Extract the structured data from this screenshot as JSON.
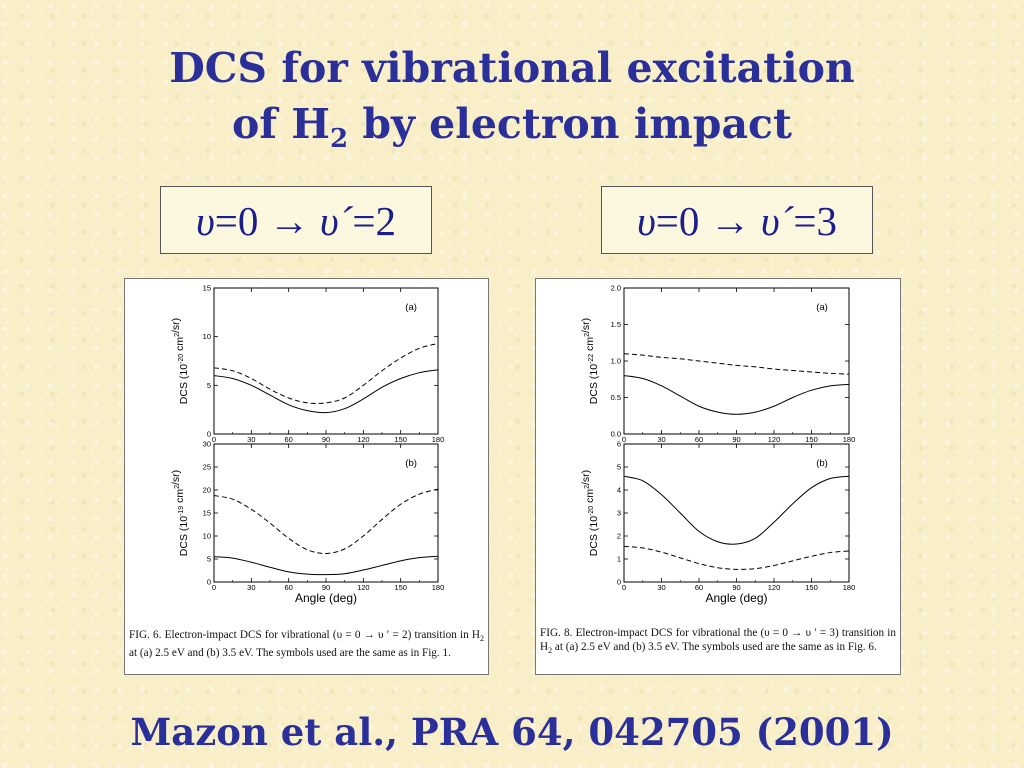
{
  "slide": {
    "title_line1": "DCS for vibrational excitation",
    "title_line2_pre": "of H",
    "title_line2_sub": "2",
    "title_line2_post": " by electron impact",
    "footer": "Mazon et al., PRA 64, 042705 (2001)"
  },
  "boxes": [
    {
      "v_symbol": "υ",
      "eq1": "=0 → ",
      "v_prime": "υ´",
      "eq2": "=2"
    },
    {
      "v_symbol": "υ",
      "eq1": "=0 → ",
      "v_prime": "υ´",
      "eq2": "=3"
    }
  ],
  "captions": [
    {
      "pre": "FIG. 6. Electron-impact DCS for vibrational (υ = 0 → υ ′ = 2) transition in H",
      "sub": "2",
      "post": " at (a) 2.5 eV and (b) 3.5 eV. The symbols used are the same as in Fig. 1."
    },
    {
      "pre": "FIG. 8. Electron-impact DCS for vibrational the (υ = 0 → υ ′ = 3) transition in H",
      "sub": "2",
      "post": " at (a) 2.5 eV and (b) 3.5 eV. The symbols used are the same as in Fig. 6."
    }
  ],
  "chart_data": [
    {
      "type": "line",
      "label": "(a)",
      "ylabel": "DCS (10^-20 cm^2/sr)",
      "xlabel": "",
      "xlim": [
        0,
        180
      ],
      "ylim": [
        0,
        15
      ],
      "xticks": [
        0,
        30,
        60,
        90,
        120,
        150,
        180
      ],
      "yticks": [
        0,
        5,
        10,
        15
      ],
      "series": [
        {
          "style": "solid",
          "x": [
            0,
            15,
            30,
            45,
            60,
            75,
            90,
            105,
            120,
            135,
            150,
            165,
            180
          ],
          "values": [
            6.0,
            5.7,
            5.0,
            4.0,
            3.0,
            2.4,
            2.2,
            2.6,
            3.6,
            4.8,
            5.7,
            6.3,
            6.6
          ]
        },
        {
          "style": "dashed",
          "x": [
            0,
            15,
            30,
            45,
            60,
            75,
            90,
            105,
            120,
            135,
            150,
            165,
            180
          ],
          "values": [
            6.8,
            6.5,
            5.7,
            4.6,
            3.7,
            3.2,
            3.2,
            3.7,
            5.0,
            6.5,
            7.8,
            8.8,
            9.3
          ]
        }
      ]
    },
    {
      "type": "line",
      "label": "(b)",
      "ylabel": "DCS (10^-19 cm^2/sr)",
      "xlabel": "Angle (deg)",
      "xlim": [
        0,
        180
      ],
      "ylim": [
        0,
        30
      ],
      "xticks": [
        0,
        30,
        60,
        90,
        120,
        150,
        180
      ],
      "yticks": [
        0,
        5,
        10,
        15,
        20,
        25,
        30
      ],
      "series": [
        {
          "style": "solid",
          "x": [
            0,
            15,
            30,
            45,
            60,
            75,
            90,
            105,
            120,
            135,
            150,
            165,
            180
          ],
          "values": [
            5.5,
            5.2,
            4.3,
            3.2,
            2.2,
            1.7,
            1.6,
            1.8,
            2.6,
            3.6,
            4.6,
            5.3,
            5.6
          ]
        },
        {
          "style": "dashed",
          "x": [
            0,
            15,
            30,
            45,
            60,
            75,
            90,
            105,
            120,
            135,
            150,
            165,
            180
          ],
          "values": [
            18.8,
            18.0,
            15.8,
            12.8,
            9.5,
            7.0,
            6.2,
            7.2,
            10.0,
            13.6,
            16.9,
            19.1,
            20.2
          ]
        }
      ]
    },
    {
      "type": "line",
      "label": "(a)",
      "ylabel": "DCS (10^-22 cm^2/sr)",
      "xlabel": "",
      "xlim": [
        0,
        180
      ],
      "ylim": [
        0,
        2.0
      ],
      "xticks": [
        0,
        30,
        60,
        90,
        120,
        150,
        180
      ],
      "yticks": [
        0,
        0.5,
        1.0,
        1.5,
        2.0
      ],
      "series": [
        {
          "style": "solid",
          "x": [
            0,
            15,
            30,
            45,
            60,
            75,
            90,
            105,
            120,
            135,
            150,
            165,
            180
          ],
          "values": [
            0.8,
            0.76,
            0.66,
            0.52,
            0.38,
            0.3,
            0.27,
            0.3,
            0.38,
            0.5,
            0.6,
            0.66,
            0.68
          ]
        },
        {
          "style": "dashed",
          "x": [
            0,
            15,
            30,
            45,
            60,
            75,
            90,
            105,
            120,
            135,
            150,
            165,
            180
          ],
          "values": [
            1.1,
            1.08,
            1.05,
            1.03,
            1.0,
            0.97,
            0.94,
            0.92,
            0.89,
            0.87,
            0.85,
            0.83,
            0.82
          ]
        }
      ]
    },
    {
      "type": "line",
      "label": "(b)",
      "ylabel": "DCS (10^-20 cm^2/sr)",
      "xlabel": "Angle (deg)",
      "xlim": [
        0,
        180
      ],
      "ylim": [
        0,
        6
      ],
      "xticks": [
        0,
        30,
        60,
        90,
        120,
        150,
        180
      ],
      "yticks": [
        0,
        1,
        2,
        3,
        4,
        5,
        6
      ],
      "series": [
        {
          "style": "solid",
          "x": [
            0,
            15,
            30,
            45,
            60,
            75,
            90,
            105,
            120,
            135,
            150,
            165,
            180
          ],
          "values": [
            4.6,
            4.4,
            3.8,
            3.0,
            2.2,
            1.75,
            1.65,
            1.9,
            2.6,
            3.4,
            4.1,
            4.5,
            4.6
          ]
        },
        {
          "style": "dashed",
          "x": [
            0,
            15,
            30,
            45,
            60,
            75,
            90,
            105,
            120,
            135,
            150,
            165,
            180
          ],
          "values": [
            1.55,
            1.48,
            1.3,
            1.05,
            0.8,
            0.62,
            0.55,
            0.58,
            0.72,
            0.92,
            1.12,
            1.28,
            1.35
          ]
        }
      ]
    }
  ]
}
